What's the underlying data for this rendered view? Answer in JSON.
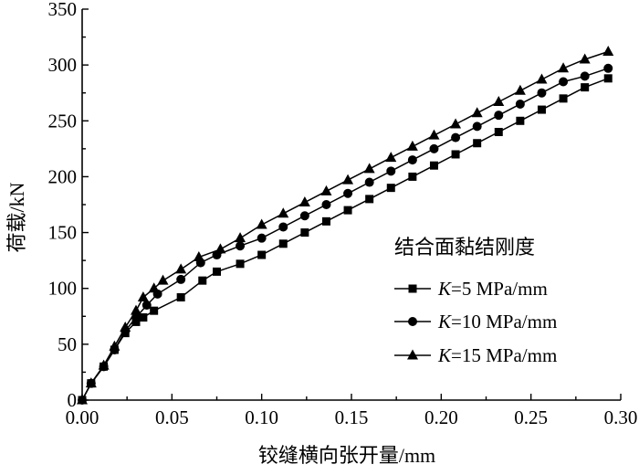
{
  "chart_data": {
    "type": "line",
    "xlabel": "铰缝横向张开量/mm",
    "ylabel": "荷载/kN",
    "xlim": [
      0,
      0.3
    ],
    "ylim": [
      0,
      350
    ],
    "xticks": [
      "0.00",
      "0.05",
      "0.10",
      "0.15",
      "0.20",
      "0.25",
      "0.30"
    ],
    "yticks": [
      "0",
      "50",
      "100",
      "150",
      "200",
      "250",
      "300",
      "350"
    ],
    "grid": false,
    "legend": {
      "title": "结合面黏结刚度",
      "placement": "right",
      "entries": [
        {
          "italic": "K",
          "rest": "=5 MPa/mm"
        },
        {
          "italic": "K",
          "rest": "=10 MPa/mm"
        },
        {
          "italic": "K",
          "rest": "=15 MPa/mm"
        }
      ]
    },
    "series": [
      {
        "name": "K=5 MPa/mm",
        "marker": "square",
        "x": [
          0.0,
          0.005,
          0.012,
          0.018,
          0.024,
          0.03,
          0.034,
          0.04,
          0.055,
          0.067,
          0.075,
          0.088,
          0.1,
          0.112,
          0.124,
          0.136,
          0.148,
          0.16,
          0.172,
          0.184,
          0.196,
          0.208,
          0.22,
          0.232,
          0.244,
          0.256,
          0.268,
          0.28,
          0.293
        ],
        "y": [
          0,
          15,
          30,
          45,
          60,
          70,
          74,
          80,
          92,
          107,
          115,
          122,
          130,
          140,
          150,
          160,
          170,
          180,
          190,
          200,
          210,
          220,
          230,
          240,
          250,
          260,
          270,
          280,
          288
        ]
      },
      {
        "name": "K=10 MPa/mm",
        "marker": "circle",
        "x": [
          0.0,
          0.005,
          0.012,
          0.018,
          0.024,
          0.03,
          0.036,
          0.042,
          0.055,
          0.066,
          0.075,
          0.088,
          0.1,
          0.112,
          0.124,
          0.136,
          0.148,
          0.16,
          0.172,
          0.184,
          0.196,
          0.208,
          0.22,
          0.232,
          0.244,
          0.256,
          0.268,
          0.28,
          0.293
        ],
        "y": [
          0,
          15,
          30,
          45,
          62,
          74,
          85,
          95,
          108,
          123,
          130,
          138,
          145,
          155,
          165,
          175,
          185,
          195,
          205,
          215,
          225,
          235,
          245,
          255,
          265,
          275,
          285,
          290,
          297
        ]
      },
      {
        "name": "K=15 MPa/mm",
        "marker": "triangle",
        "x": [
          0.0,
          0.005,
          0.012,
          0.018,
          0.024,
          0.03,
          0.034,
          0.04,
          0.045,
          0.055,
          0.065,
          0.077,
          0.088,
          0.1,
          0.112,
          0.124,
          0.136,
          0.148,
          0.16,
          0.172,
          0.184,
          0.196,
          0.208,
          0.22,
          0.232,
          0.244,
          0.256,
          0.268,
          0.28,
          0.293
        ],
        "y": [
          0,
          15,
          31,
          48,
          65,
          80,
          92,
          100,
          107,
          117,
          128,
          135,
          145,
          157,
          167,
          177,
          187,
          197,
          207,
          217,
          227,
          237,
          247,
          257,
          267,
          277,
          287,
          297,
          305,
          312
        ]
      }
    ]
  }
}
